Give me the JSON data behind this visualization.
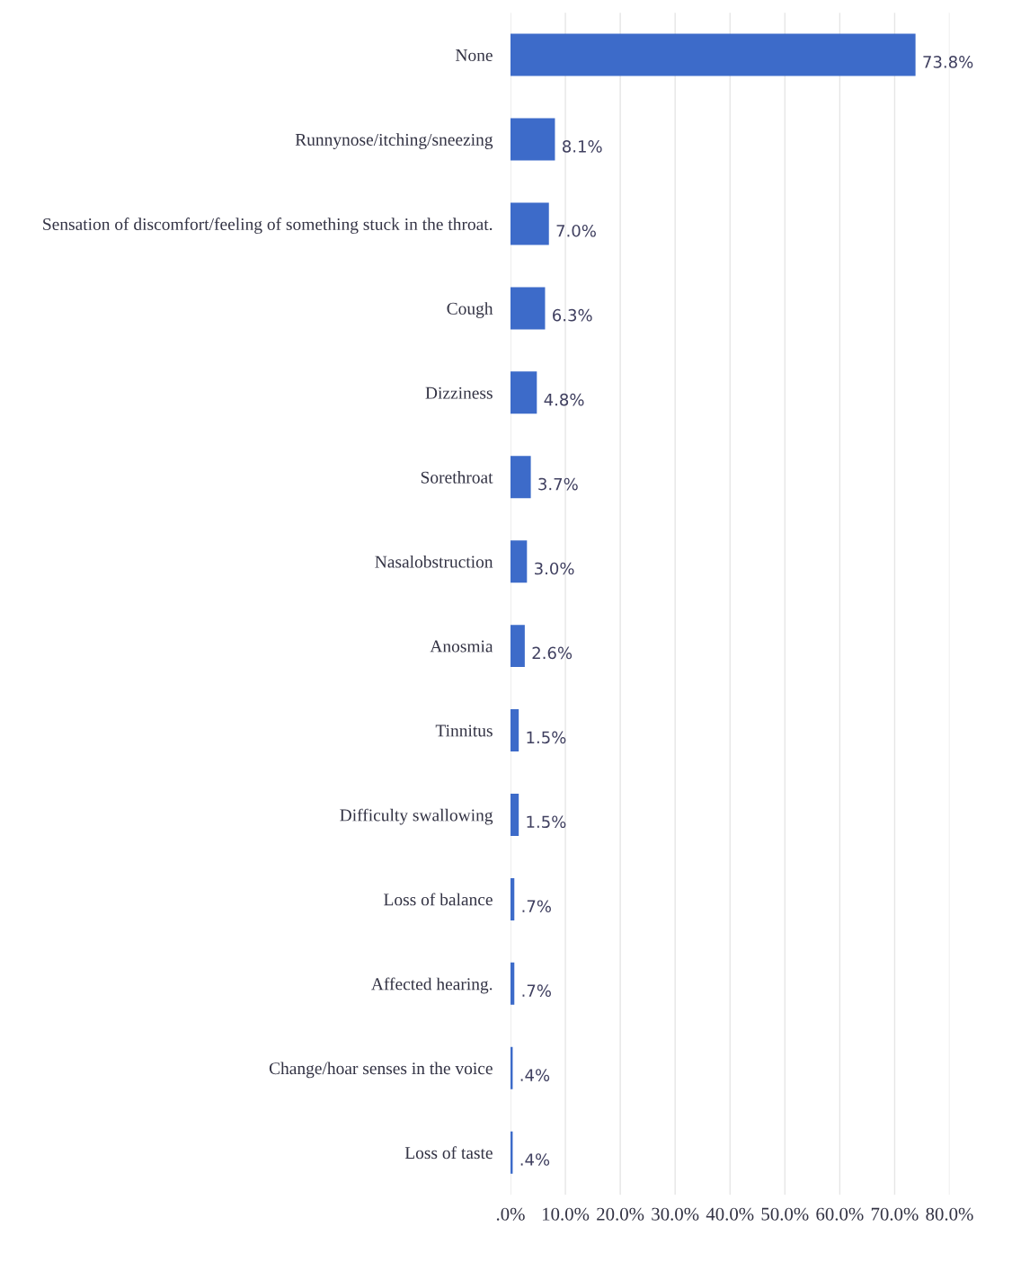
{
  "chart_data": {
    "type": "bar",
    "orientation": "horizontal",
    "categories": [
      "None",
      "Runnynose/itching/sneezing",
      "Sensation of discomfort/feeling of something stuck in the throat.",
      "Cough",
      "Dizziness",
      "Sorethroat",
      "Nasalobstruction",
      "Anosmia",
      "Tinnitus",
      "Difficulty swallowing",
      "Loss of balance",
      "Affected hearing.",
      "Change/hoar senses in the voice",
      "Loss of taste"
    ],
    "values": [
      73.8,
      8.1,
      7.0,
      6.3,
      4.8,
      3.7,
      3.0,
      2.6,
      1.5,
      1.5,
      0.7,
      0.7,
      0.4,
      0.4
    ],
    "value_labels": [
      "73.8%",
      "8.1%",
      "7.0%",
      "6.3%",
      "4.8%",
      "3.7%",
      "3.0%",
      "2.6%",
      "1.5%",
      "1.5%",
      ".7%",
      ".7%",
      ".4%",
      ".4%"
    ],
    "color": "#3d6bc9",
    "xlim": [
      0,
      80
    ],
    "xticks": [
      {
        "value": 0,
        "label": ".0%"
      },
      {
        "value": 10,
        "label": "10.0%"
      },
      {
        "value": 20,
        "label": "20.0%"
      },
      {
        "value": 30,
        "label": "30.0%"
      },
      {
        "value": 40,
        "label": "40.0%"
      },
      {
        "value": 50,
        "label": "50.0%"
      },
      {
        "value": 60,
        "label": "60.0%"
      },
      {
        "value": 70,
        "label": "70.0%"
      },
      {
        "value": 80,
        "label": "80.0%"
      }
    ],
    "grid": "x",
    "legend": false
  }
}
